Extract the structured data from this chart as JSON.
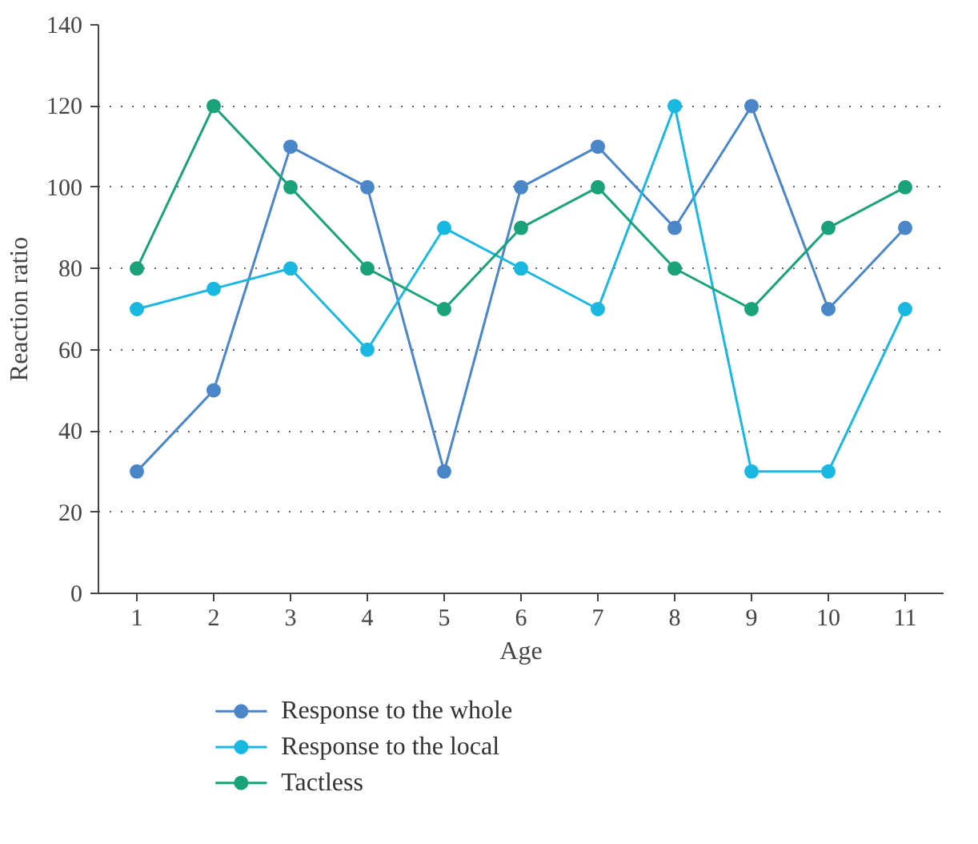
{
  "chart_data": {
    "type": "line",
    "xlabel": "Age",
    "ylabel": "Reaction ratio",
    "x": [
      1,
      2,
      3,
      4,
      5,
      6,
      7,
      8,
      9,
      10,
      11
    ],
    "xlim": [
      0.5,
      11.5
    ],
    "xticks": [
      1,
      2,
      3,
      4,
      5,
      6,
      7,
      8,
      9,
      10,
      11
    ],
    "ylim": [
      0,
      140
    ],
    "yticks": [
      0,
      20,
      40,
      60,
      80,
      100,
      120,
      140
    ],
    "grid": "y",
    "legend": "bottom",
    "marker": "circle",
    "line_style": "solid",
    "series": [
      {
        "name": "Response to the whole",
        "color": "#4a86c8",
        "values": [
          30,
          50,
          110,
          100,
          30,
          100,
          110,
          90,
          120,
          70,
          90
        ]
      },
      {
        "name": "Response to the local",
        "color": "#1ab8e0",
        "values": [
          70,
          75,
          80,
          60,
          90,
          80,
          70,
          120,
          30,
          30,
          70
        ]
      },
      {
        "name": "Tactless",
        "color": "#1aa37a",
        "values": [
          80,
          120,
          100,
          80,
          70,
          90,
          100,
          80,
          70,
          90,
          100
        ]
      }
    ]
  }
}
